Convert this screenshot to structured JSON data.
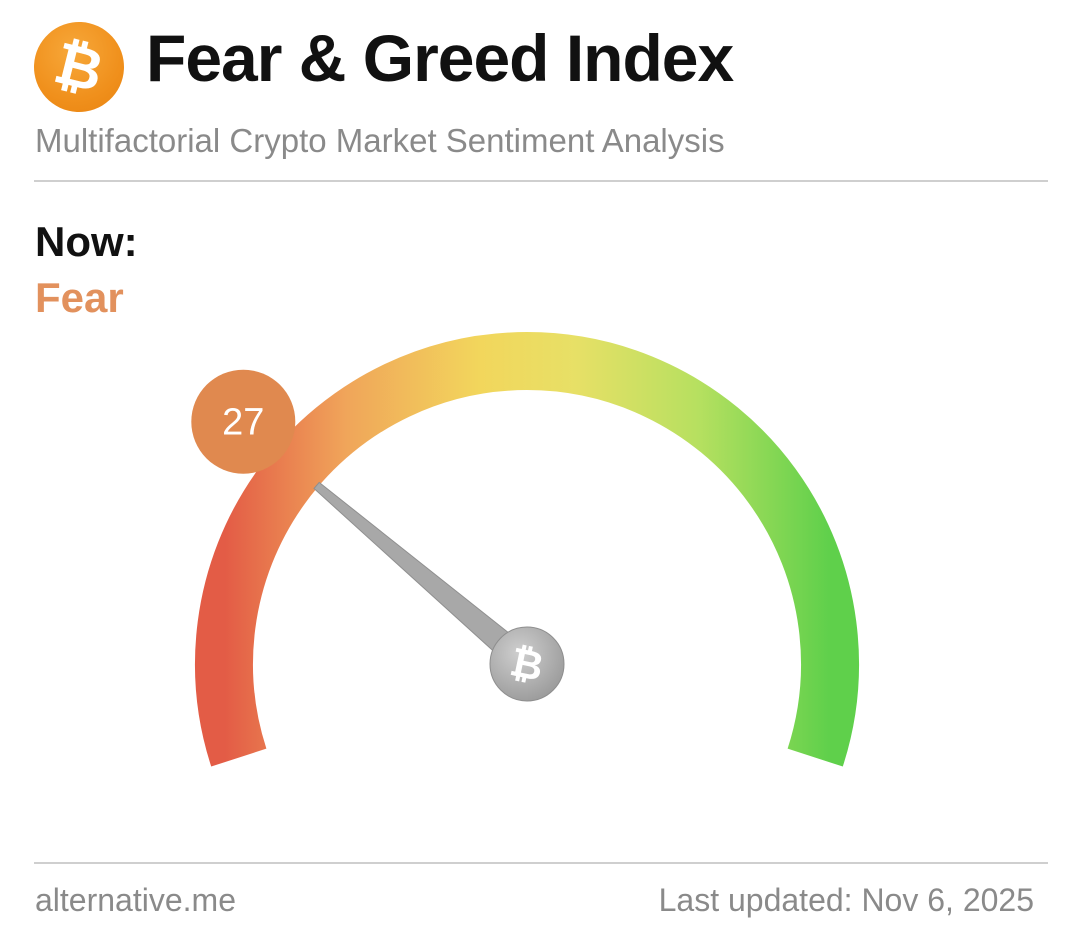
{
  "header": {
    "logo_glyph": "₿",
    "title": "Fear & Greed Index",
    "subtitle": "Multifactorial Crypto Market Sentiment Analysis"
  },
  "now": {
    "label": "Now:",
    "classification": "Fear",
    "classification_color": "#e2915d"
  },
  "chart_data": {
    "type": "gauge",
    "value": 27,
    "min": 0,
    "max": 100,
    "value_label": "27",
    "badge_color": "#e0894f",
    "gradient_colors": [
      "#e35c46",
      "#f0a55a",
      "#f2d65c",
      "#e7e066",
      "#b7e060",
      "#5fd04b"
    ],
    "needle_color": "#a8a8a8",
    "hub_glyph": "₿"
  },
  "footer": {
    "source": "alternative.me",
    "last_updated": "Last updated: Nov 6, 2025"
  }
}
